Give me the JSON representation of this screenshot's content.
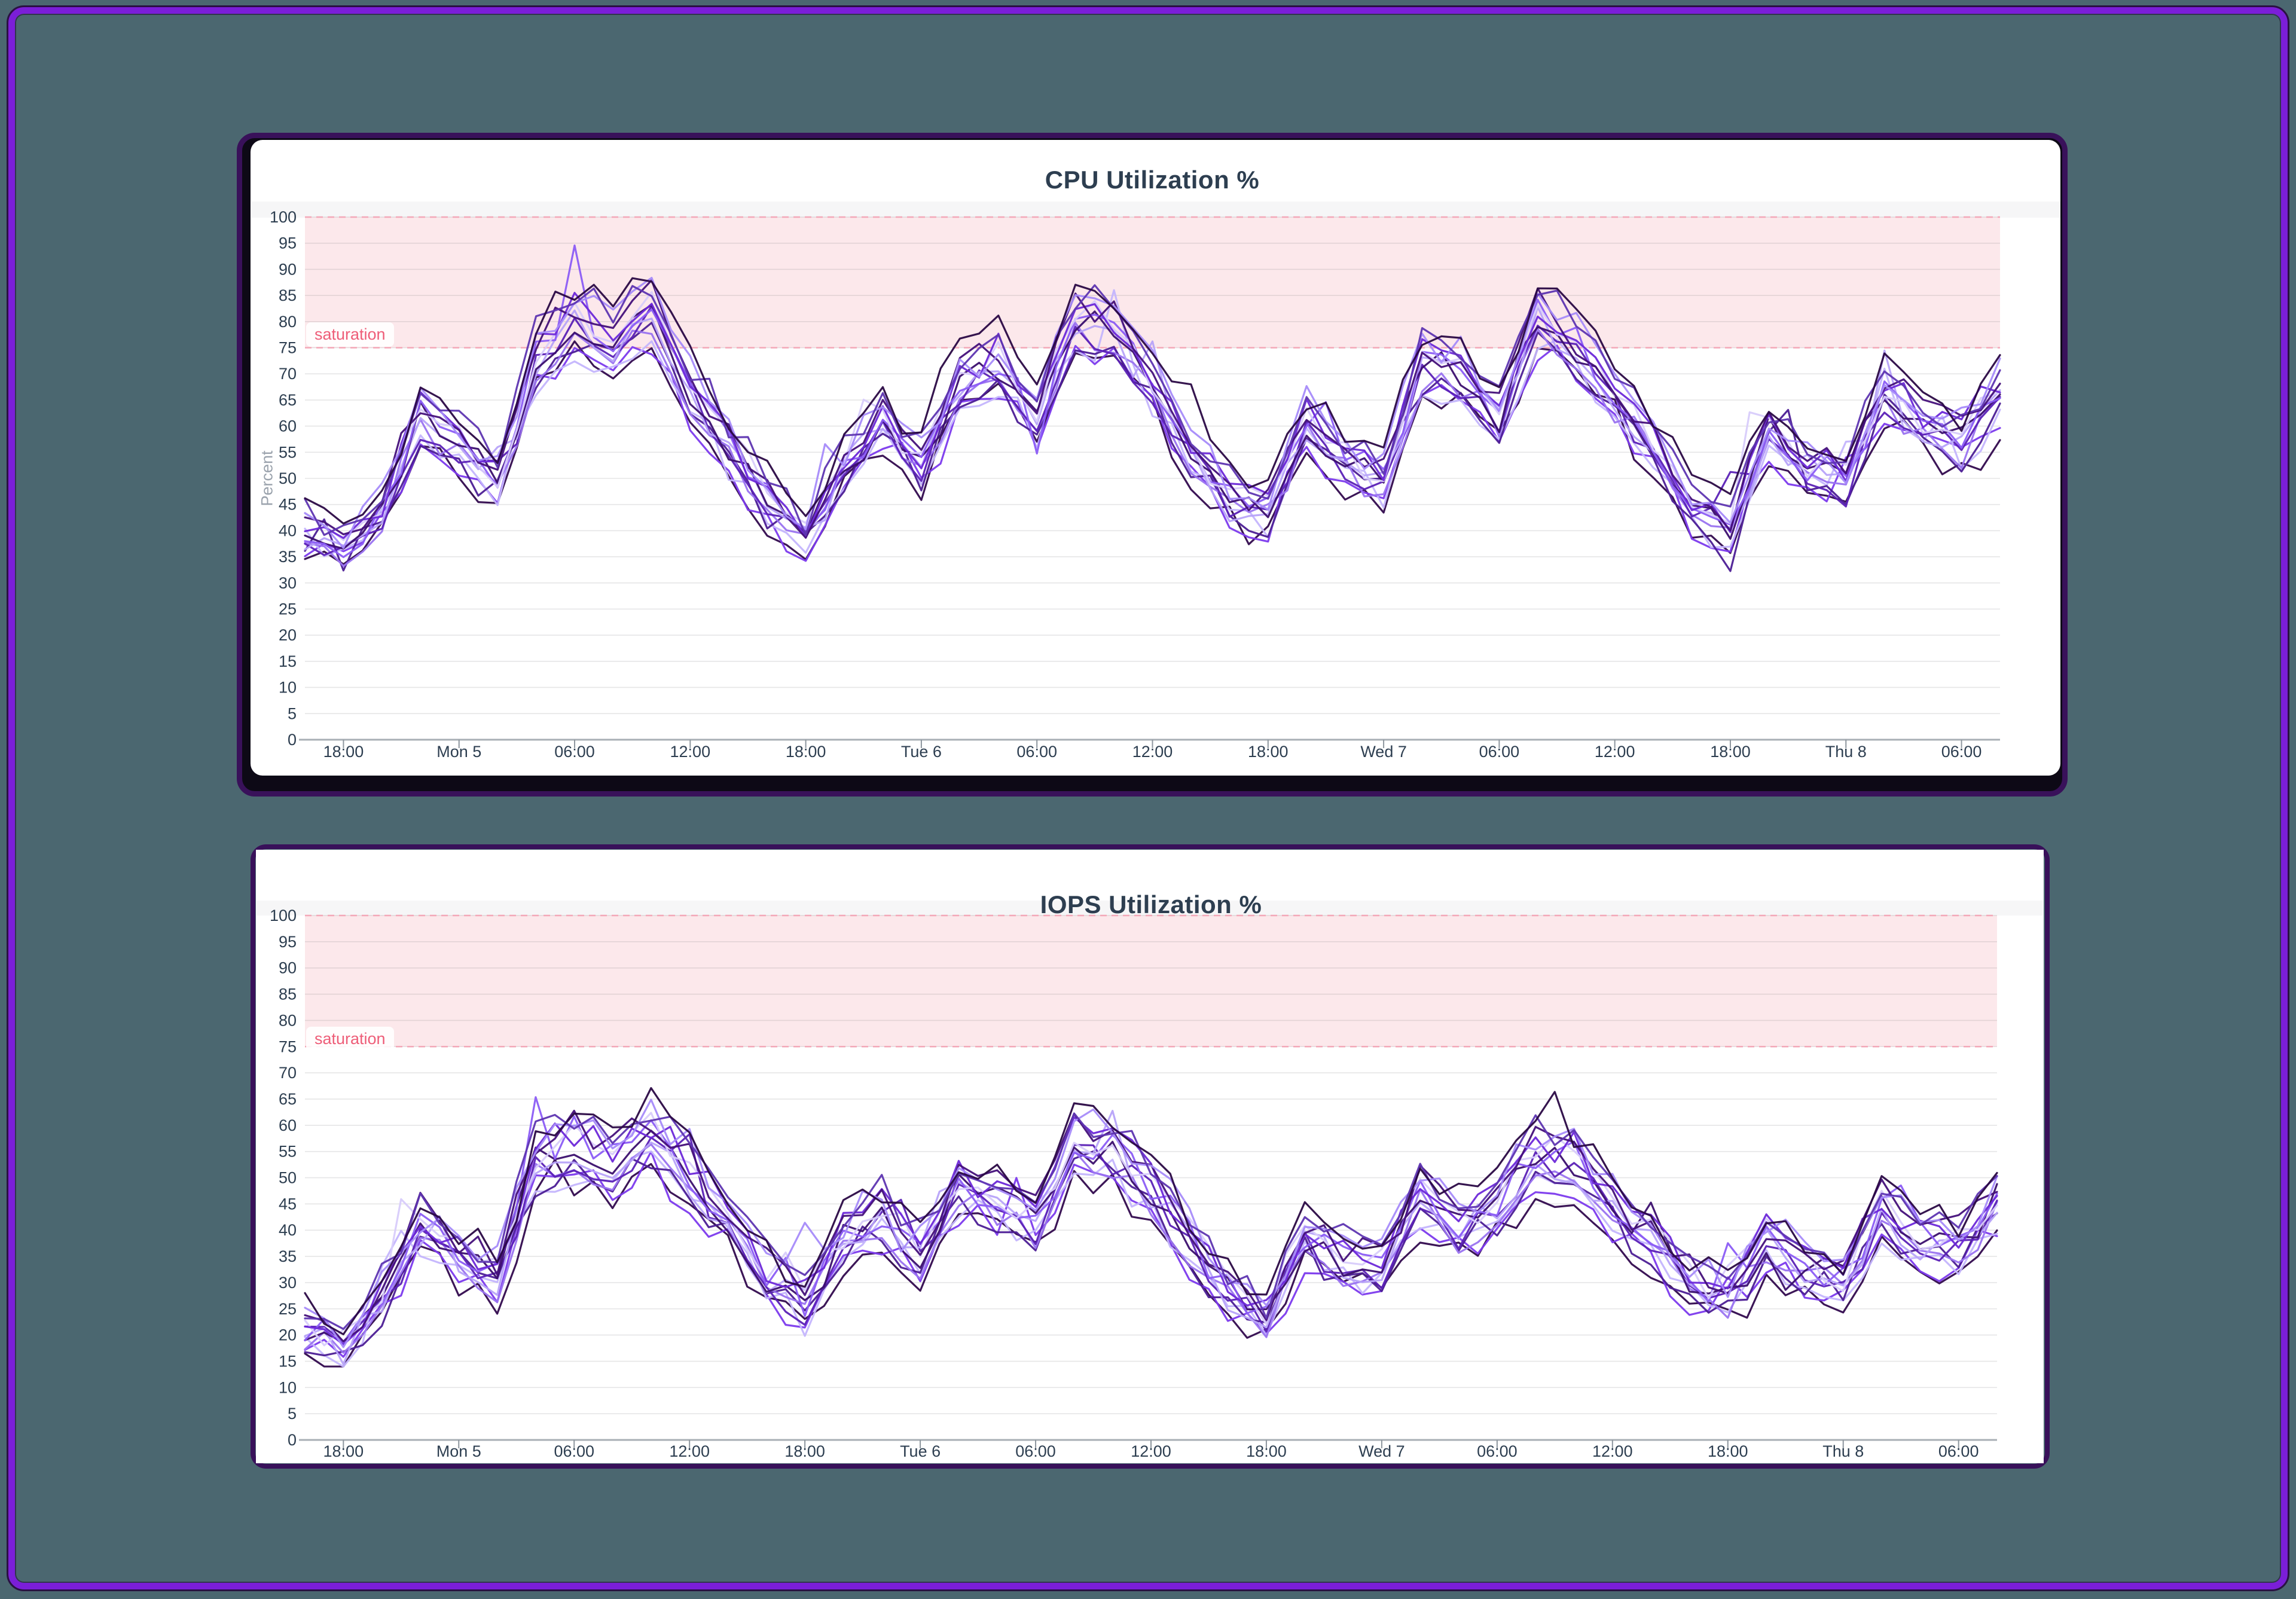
{
  "window": {
    "background_color": "#4b6770",
    "frame_color": "#7b1ed8",
    "frame_outline_color": "#2a1143",
    "card_border_color": "#39115a"
  },
  "chart_data": [
    {
      "type": "line",
      "title": "CPU Utilization %",
      "ylabel": "Percent",
      "ylim": [
        0,
        100
      ],
      "y_tick_step": 5,
      "grid": true,
      "legend": "none",
      "x_ticks": [
        "18:00",
        "Mon 5",
        "06:00",
        "12:00",
        "18:00",
        "Tue 6",
        "06:00",
        "12:00",
        "18:00",
        "Wed 7",
        "06:00",
        "12:00",
        "18:00",
        "Thu 8",
        "06:00"
      ],
      "x_tick_hours": [
        2,
        8,
        14,
        20,
        26,
        32,
        38,
        44,
        50,
        56,
        62,
        68,
        74,
        80,
        86
      ],
      "x_range_hours": [
        0,
        88
      ],
      "saturation": {
        "label": "saturation",
        "from": 75,
        "to": 100,
        "band_fill": "#fce8eb",
        "line_color": "#f3a8b8",
        "label_color": "#ee5d78"
      },
      "num_series": 15,
      "series_colors": [
        "#31094e",
        "#7c3aed",
        "#c4b5fd",
        "#4c1d95",
        "#9a73f0",
        "#5b21b6",
        "#b7a3f9",
        "#3b0f6e",
        "#8b5cf6",
        "#d8ccfb",
        "#6d28d9",
        "#44107a",
        "#a78bfa",
        "#5e35b1",
        "#2a0845"
      ],
      "mean_x_hours": [
        0,
        2,
        4,
        6,
        8,
        10,
        12,
        14,
        16,
        18,
        20,
        22,
        24,
        26,
        28,
        30,
        32,
        34,
        36,
        38,
        40,
        42,
        44,
        46,
        48,
        50,
        52,
        54,
        56,
        58,
        60,
        62,
        64,
        66,
        68,
        70,
        72,
        74,
        76,
        78,
        80,
        82,
        84,
        86,
        88
      ],
      "mean_values": [
        40,
        36,
        44,
        62,
        56,
        49,
        73,
        80,
        76,
        82,
        67,
        56,
        46,
        39,
        52,
        61,
        52,
        68,
        72,
        61,
        80,
        78,
        68,
        55,
        46,
        43,
        61,
        53,
        50,
        72,
        70,
        62,
        81,
        75,
        65,
        57,
        45,
        40,
        59,
        52,
        49,
        67,
        60,
        57,
        66
      ],
      "band_spread": 6.5,
      "bundle_ref": [
        36,
        82
      ],
      "clamp": [
        29,
        98
      ],
      "seed": 20240105
    },
    {
      "type": "line",
      "title": "IOPS Utilization %",
      "ylabel": "",
      "ylim": [
        0,
        100
      ],
      "y_tick_step": 5,
      "grid": true,
      "legend": "none",
      "x_ticks": [
        "18:00",
        "Mon 5",
        "06:00",
        "12:00",
        "18:00",
        "Tue 6",
        "06:00",
        "12:00",
        "18:00",
        "Wed 7",
        "06:00",
        "12:00",
        "18:00",
        "Thu 8",
        "06:00"
      ],
      "x_tick_hours": [
        2,
        8,
        14,
        20,
        26,
        32,
        38,
        44,
        50,
        56,
        62,
        68,
        74,
        80,
        86
      ],
      "x_range_hours": [
        0,
        88
      ],
      "saturation": {
        "label": "saturation",
        "from": 75,
        "to": 100,
        "band_fill": "#fce8eb",
        "line_color": "#f3a8b8",
        "label_color": "#ee5d78"
      },
      "num_series": 15,
      "series_colors": [
        "#31094e",
        "#7c3aed",
        "#c4b5fd",
        "#4c1d95",
        "#9a73f0",
        "#5b21b6",
        "#b7a3f9",
        "#3b0f6e",
        "#8b5cf6",
        "#d8ccfb",
        "#6d28d9",
        "#44107a",
        "#a78bfa",
        "#5e35b1",
        "#2a0845"
      ],
      "mean_x_hours": [
        0,
        2,
        4,
        6,
        8,
        10,
        12,
        14,
        16,
        18,
        20,
        22,
        24,
        26,
        28,
        30,
        32,
        34,
        36,
        38,
        40,
        42,
        44,
        46,
        48,
        50,
        52,
        54,
        56,
        58,
        60,
        62,
        64,
        66,
        68,
        70,
        72,
        74,
        76,
        78,
        80,
        82,
        84,
        86,
        88
      ],
      "mean_values": [
        21,
        18,
        27,
        41,
        35,
        31,
        53,
        56,
        53,
        58,
        50,
        42,
        31,
        26,
        38,
        43,
        35,
        48,
        46,
        41,
        56,
        55,
        48,
        38,
        28,
        23,
        39,
        34,
        33,
        46,
        41,
        44,
        54,
        53,
        45,
        38,
        30,
        27,
        38,
        33,
        30,
        44,
        38,
        37,
        46
      ],
      "band_spread": 6.5,
      "bundle_ref": [
        18,
        58
      ],
      "clamp": [
        14,
        77.5
      ],
      "seed": 777
    }
  ]
}
